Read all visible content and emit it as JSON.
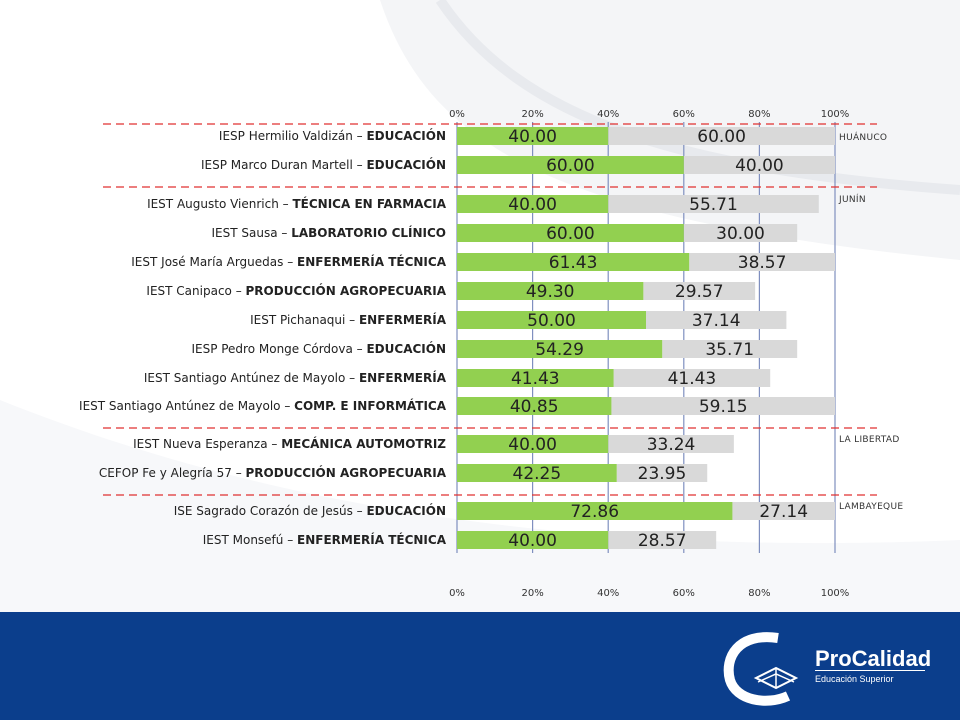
{
  "chart_data": {
    "type": "bar",
    "stacked": true,
    "orientation": "horizontal",
    "xlim": [
      0,
      100
    ],
    "ticks": [
      "0%",
      "20%",
      "40%",
      "60%",
      "80%",
      "100%"
    ],
    "colors": {
      "first": "#92d050",
      "second": "#d9d9d9",
      "divider": "#e03030",
      "axis": "#7f8fbf"
    },
    "groups": [
      {
        "region": "HUÁNUCO",
        "rows": [
          {
            "name": "IESP Hermilio Valdizán – ",
            "bold": "EDUCACIÓN",
            "v1": 40.0,
            "v2": 60.0,
            "l1": "40.00",
            "l2": "60.00"
          },
          {
            "name": "IESP Marco Duran Martell – ",
            "bold": "EDUCACIÓN",
            "v1": 60.0,
            "v2": 40.0,
            "l1": "60.00",
            "l2": "40.00"
          }
        ]
      },
      {
        "region": "JUNÍN",
        "rows": [
          {
            "name": "IEST Augusto Vienrich – ",
            "bold": "TÉCNICA EN FARMACIA",
            "v1": 40.0,
            "v2": 55.71,
            "l1": "40.00",
            "l2": "55.71"
          },
          {
            "name": "IEST Sausa – ",
            "bold": "LABORATORIO CLÍNICO",
            "v1": 60.0,
            "v2": 30.0,
            "l1": "60.00",
            "l2": "30.00"
          },
          {
            "name": "IEST José María Arguedas – ",
            "bold": "ENFERMERÍA TÉCNICA",
            "v1": 61.43,
            "v2": 38.57,
            "l1": "61.43",
            "l2": "38.57"
          },
          {
            "name": "IEST Canipaco – ",
            "bold": "PRODUCCIÓN AGROPECUARIA",
            "v1": 49.3,
            "v2": 29.57,
            "l1": "49.30",
            "l2": "29.57"
          },
          {
            "name": "IEST Pichanaqui – ",
            "bold": "ENFERMERÍA",
            "v1": 50.0,
            "v2": 37.14,
            "l1": "50.00",
            "l2": "37.14"
          },
          {
            "name": "IESP Pedro Monge Córdova – ",
            "bold": "EDUCACIÓN",
            "v1": 54.29,
            "v2": 35.71,
            "l1": "54.29",
            "l2": "35.71"
          },
          {
            "name": "IEST Santiago Antúnez de Mayolo – ",
            "bold": "ENFERMERÍA",
            "v1": 41.43,
            "v2": 41.43,
            "l1": "41.43",
            "l2": "41.43"
          },
          {
            "name": "IEST Santiago Antúnez de Mayolo – ",
            "bold": "COMP. E INFORMÁTICA",
            "v1": 40.85,
            "v2": 59.15,
            "l1": "40.85",
            "l2": "59.15"
          }
        ]
      },
      {
        "region": "LA LIBERTAD",
        "rows": [
          {
            "name": "IEST Nueva Esperanza – ",
            "bold": "MECÁNICA AUTOMOTRIZ",
            "v1": 40.0,
            "v2": 33.24,
            "l1": "40.00",
            "l2": "33.24"
          },
          {
            "name": "CEFOP Fe y Alegría 57 – ",
            "bold": "PRODUCCIÓN AGROPECUARIA",
            "v1": 42.25,
            "v2": 23.95,
            "l1": "42.25",
            "l2": "23.95"
          }
        ]
      },
      {
        "region": "LAMBAYEQUE",
        "rows": [
          {
            "name": "ISE Sagrado Corazón de Jesús – ",
            "bold": "EDUCACIÓN",
            "v1": 72.86,
            "v2": 27.14,
            "l1": "72.86",
            "l2": "27.14"
          },
          {
            "name": "IEST Monsefú – ",
            "bold": "ENFERMERÍA TÉCNICA",
            "v1": 40.0,
            "v2": 28.57,
            "l1": "40.00",
            "l2": "28.57"
          }
        ]
      }
    ]
  },
  "footer": {
    "brand": "ProCalidad",
    "subtitle": "Educación Superior"
  }
}
